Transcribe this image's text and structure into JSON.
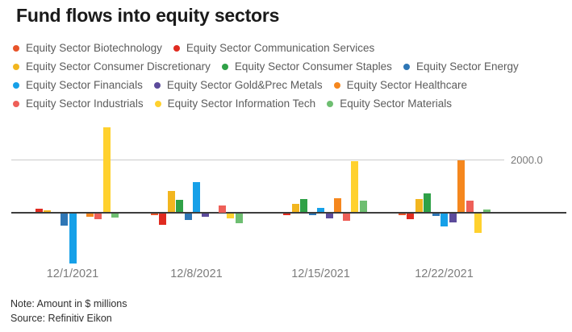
{
  "title": "Fund flows into equity sectors",
  "axis": {
    "gridline_label": "2000.0"
  },
  "notes": {
    "note": "Note: Amount in $ millions",
    "source": "Source: Refinitiv Eikon"
  },
  "chart_data": {
    "type": "bar",
    "title": "Fund flows into equity sectors",
    "units": "$ millions",
    "categories": [
      "12/1/2021",
      "12/8/2021",
      "12/15/2021",
      "12/22/2021"
    ],
    "series": [
      {
        "name": "Equity Sector Biotechnology",
        "color": "#E8542A",
        "values": [
          0,
          -70,
          0,
          -70
        ]
      },
      {
        "name": "Equity Sector Communication Services",
        "color": "#E02B20",
        "values": [
          150,
          -410,
          -60,
          -200
        ]
      },
      {
        "name": "Equity Sector Consumer Discretionary",
        "color": "#F2B61F",
        "values": [
          70,
          800,
          325,
          515
        ]
      },
      {
        "name": "Equity Sector Consumer Staples",
        "color": "#2FA147",
        "values": [
          0,
          470,
          505,
          700
        ]
      },
      {
        "name": "Equity Sector Energy",
        "color": "#2E76B5",
        "values": [
          -460,
          -235,
          -50,
          -80
        ]
      },
      {
        "name": "Equity Sector Financials",
        "color": "#16A0E8",
        "values": [
          -1875,
          1130,
          170,
          -485
        ]
      },
      {
        "name": "Equity Sector Gold&Prec Metals",
        "color": "#5C4B9B",
        "values": [
          0,
          -110,
          -180,
          -330
        ]
      },
      {
        "name": "Equity Sector Healthcare",
        "color": "#F5871E",
        "values": [
          -130,
          0,
          545,
          1950
        ]
      },
      {
        "name": "Equity Sector Industrials",
        "color": "#EE5F58",
        "values": [
          -225,
          250,
          -265,
          435
        ]
      },
      {
        "name": "Equity Sector Information Tech",
        "color": "#FFD12E",
        "values": [
          3200,
          -180,
          1920,
          -730
        ]
      },
      {
        "name": "Equity Sector Materials",
        "color": "#6EBE71",
        "values": [
          -155,
          -355,
          425,
          105
        ]
      }
    ],
    "xlabel": "",
    "ylabel": "",
    "ylim": [
      -2000,
      3400
    ],
    "gridlines": [
      2000
    ],
    "grid": "single horizontal line at 2000 labeled 2000.0",
    "legend_position": "top"
  }
}
